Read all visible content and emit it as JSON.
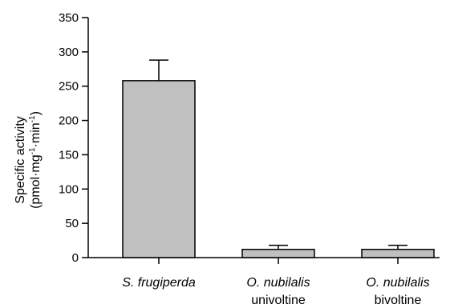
{
  "chart_data": {
    "type": "bar",
    "title": "",
    "ylabel": {
      "line1": "Specific activity",
      "line2_prefix": "(pmol·mg",
      "line2_sup1": "-1",
      "line2_mid": "·min",
      "line2_sup2": "-1",
      "line2_suffix": ")"
    },
    "xlabel": "",
    "ylim": [
      0,
      350
    ],
    "yticks": [
      0,
      50,
      100,
      150,
      200,
      250,
      300,
      350
    ],
    "categories": [
      {
        "name": "S. frugiperda",
        "sub": ""
      },
      {
        "name": "O. nubilalis",
        "sub": "univoltine"
      },
      {
        "name": "O. nubilalis",
        "sub": "bivoltine"
      }
    ],
    "values": [
      258,
      12,
      12
    ],
    "errors": [
      30,
      6,
      6
    ],
    "bar_color": "#c0c0c0",
    "grid": false
  }
}
